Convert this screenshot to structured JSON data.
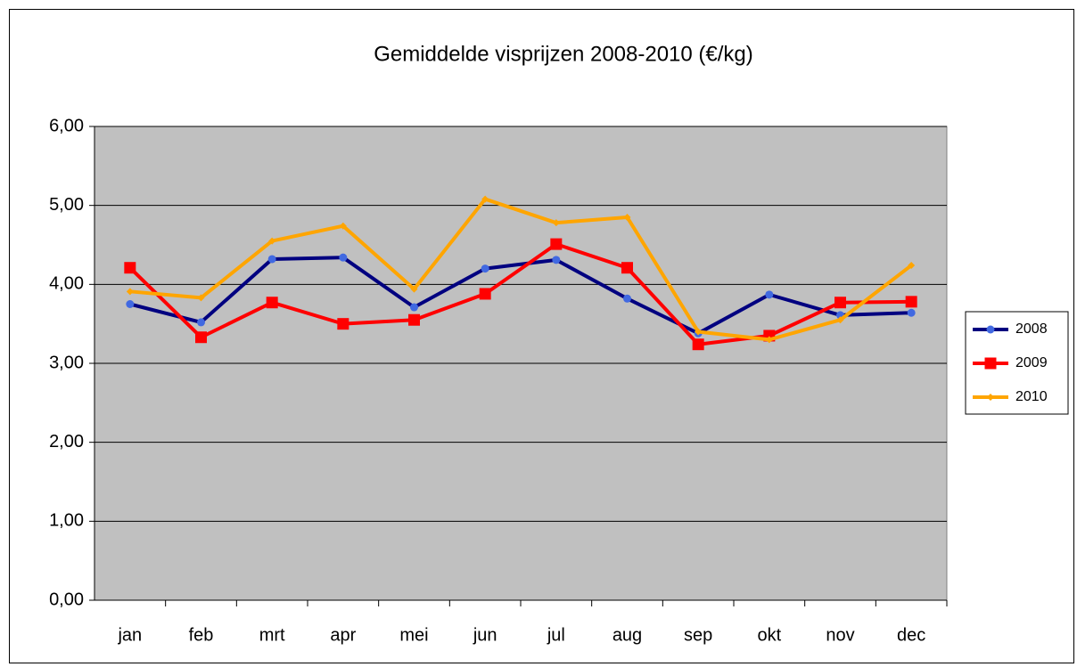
{
  "chart_data": {
    "type": "line",
    "title": "Gemiddelde visprijzen 2008-2010 (€/kg)",
    "categories": [
      "jan",
      "feb",
      "mrt",
      "apr",
      "mei",
      "jun",
      "jul",
      "aug",
      "sep",
      "okt",
      "nov",
      "dec"
    ],
    "series": [
      {
        "name": "2008",
        "color": "#000080",
        "marker": "circle",
        "values": [
          3.75,
          3.52,
          4.32,
          4.34,
          3.71,
          4.2,
          4.31,
          3.82,
          3.38,
          3.87,
          3.61,
          3.64
        ]
      },
      {
        "name": "2009",
        "color": "#ff0000",
        "marker": "square",
        "values": [
          4.21,
          3.33,
          3.77,
          3.5,
          3.55,
          3.88,
          4.51,
          4.21,
          3.24,
          3.35,
          3.77,
          3.78
        ]
      },
      {
        "name": "2010",
        "color": "#ffa500",
        "marker": "diamond",
        "values": [
          3.91,
          3.83,
          4.55,
          4.74,
          3.94,
          5.08,
          4.78,
          4.85,
          3.4,
          3.3,
          3.55,
          4.24
        ]
      }
    ],
    "ylim": [
      0,
      6
    ],
    "yticks": [
      {
        "value": 0,
        "label": "0,00"
      },
      {
        "value": 1,
        "label": "1,00"
      },
      {
        "value": 2,
        "label": "2,00"
      },
      {
        "value": 3,
        "label": "3,00"
      },
      {
        "value": 4,
        "label": "4,00"
      },
      {
        "value": 5,
        "label": "5,00"
      },
      {
        "value": 6,
        "label": "6,00"
      }
    ],
    "grid": true,
    "legend": "right"
  }
}
